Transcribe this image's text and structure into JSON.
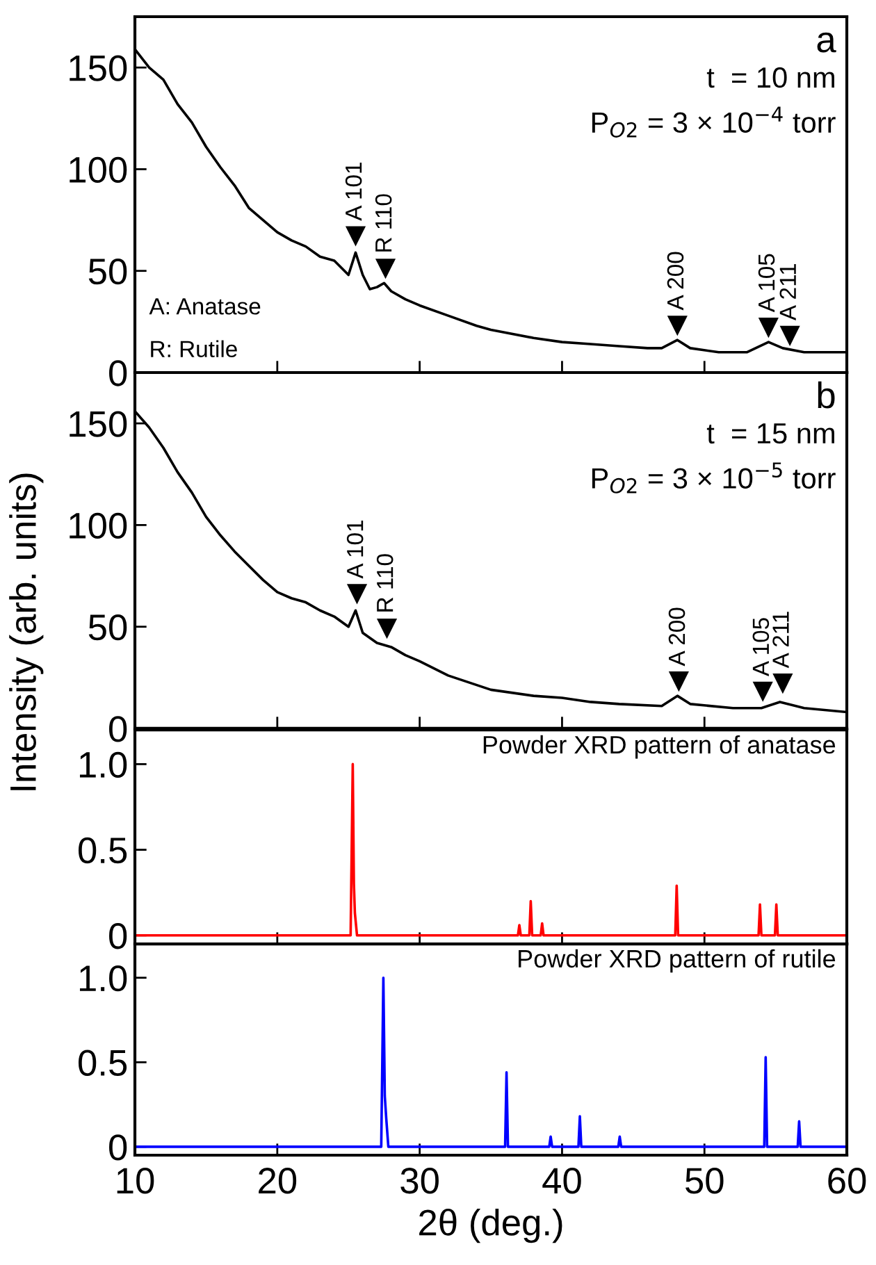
{
  "chart_data": [
    {
      "type": "line",
      "title": "a",
      "ylabel": "Intensity (arb. units)",
      "xlim": [
        10,
        60
      ],
      "xticks": [
        10,
        20,
        30,
        40,
        50,
        60
      ],
      "ylim": [
        0,
        175
      ],
      "yticks": [
        0,
        50,
        100,
        150
      ],
      "tick_labels": "y",
      "grid": false,
      "legend": false,
      "annotations": [
        "t  = 10 nm",
        "P$_{O2}$ = 3 × 10$^{−4}$ torr",
        "A: Anatase",
        "R: Rutile",
        {
          "text": "A 101",
          "x": 25.5,
          "y": 67
        },
        {
          "text": "R 110",
          "x": 27.6,
          "y": 51
        },
        {
          "text": "A 200",
          "x": 48.1,
          "y": 23
        },
        {
          "text": "A 105",
          "x": 54.5,
          "y": 22
        },
        {
          "text": "A 211",
          "x": 56.0,
          "y": 18
        }
      ],
      "series": [
        {
          "color": "#000000",
          "x": [
            10,
            11,
            12,
            13,
            14,
            15,
            16,
            17,
            18,
            19,
            20,
            21,
            22,
            23,
            24,
            25,
            25.5,
            26,
            26.5,
            27,
            27.5,
            28,
            29,
            30,
            32,
            34,
            35,
            38,
            40,
            42,
            44,
            46,
            47,
            48.1,
            49,
            51,
            53,
            54.5,
            55.5,
            57,
            60
          ],
          "values": [
            159,
            150,
            144,
            132,
            123,
            111,
            101,
            92,
            81,
            75,
            69,
            65,
            62,
            57,
            55,
            48,
            59,
            48,
            41,
            42,
            44,
            40,
            36,
            33,
            28,
            23,
            21,
            17,
            15,
            14,
            13,
            12,
            12,
            16,
            12,
            10,
            10,
            15,
            12,
            10,
            10
          ]
        },
        {
          "type": "scatter",
          "marker": "triangle",
          "color": "#000000",
          "x": [
            25.5,
            27.6,
            48.1,
            54.5,
            56.0
          ],
          "values": [
            67,
            51,
            23,
            22,
            18
          ]
        }
      ]
    },
    {
      "type": "line",
      "title": "b",
      "xlim": [
        10,
        60
      ],
      "xticks": [
        10,
        20,
        30,
        40,
        50,
        60
      ],
      "ylim": [
        0,
        175
      ],
      "yticks": [
        0,
        50,
        100,
        150
      ],
      "tick_labels": "y",
      "grid": false,
      "legend": false,
      "annotations": [
        "t  = 15 nm",
        "P$_{O2}$ = 3 × 10$^{−5}$ torr",
        {
          "text": "A 101",
          "x": 25.6,
          "y": 66
        },
        {
          "text": "R 110",
          "x": 27.7,
          "y": 49
        },
        {
          "text": "A 200",
          "x": 48.2,
          "y": 23
        },
        {
          "text": "A 105",
          "x": 54.1,
          "y": 18
        },
        {
          "text": "A 211",
          "x": 55.5,
          "y": 22
        }
      ],
      "series": [
        {
          "color": "#000000",
          "x": [
            10,
            11,
            12,
            13,
            14,
            15,
            16,
            17,
            18,
            19,
            20,
            21,
            22,
            23,
            24,
            25,
            25.5,
            26,
            27,
            28,
            29,
            30,
            32,
            35,
            38,
            40,
            42,
            44,
            47,
            48.1,
            49,
            52,
            54,
            55.3,
            57,
            60
          ],
          "values": [
            156,
            148,
            138,
            126,
            116,
            104,
            95,
            87,
            80,
            73,
            67,
            64,
            62,
            58,
            55,
            50,
            58,
            47,
            42,
            40,
            36,
            33,
            26,
            19,
            16,
            15,
            13,
            12,
            11,
            16,
            12,
            10,
            10,
            13,
            10,
            8
          ]
        },
        {
          "type": "scatter",
          "marker": "triangle",
          "color": "#000000",
          "x": [
            25.6,
            27.7,
            48.2,
            54.1,
            55.5
          ],
          "values": [
            66,
            49,
            23,
            18,
            22
          ]
        }
      ]
    },
    {
      "type": "line",
      "xlim": [
        10,
        60
      ],
      "xticks": [
        10,
        20,
        30,
        40,
        50,
        60
      ],
      "ylim": [
        -0.05,
        1.2
      ],
      "yticks": [
        0,
        0.5,
        {
          "value": 1,
          "label": "1.0"
        }
      ],
      "tick_labels": "y",
      "grid": false,
      "legend": false,
      "annotations": [
        "Powder XRD pattern of anatase"
      ],
      "series": [
        {
          "color": "#ff0000",
          "x": [
            10,
            25.15,
            25.3,
            25.38,
            25.45,
            25.6,
            36.9,
            37.0,
            37.1,
            37.7,
            37.8,
            37.9,
            38.5,
            38.6,
            38.7,
            47.95,
            48.05,
            48.15,
            53.8,
            53.9,
            54.0,
            54.95,
            55.05,
            55.15,
            60
          ],
          "values": [
            0,
            0,
            1.0,
            0.3,
            0.13,
            0,
            0,
            0.06,
            0,
            0,
            0.2,
            0,
            0,
            0.07,
            0,
            0,
            0.29,
            0,
            0,
            0.18,
            0,
            0,
            0.18,
            0,
            0
          ]
        }
      ]
    },
    {
      "type": "line",
      "xlabel": "2θ (deg.)",
      "xlim": [
        10,
        60
      ],
      "xticks": [
        10,
        20,
        30,
        40,
        50,
        60
      ],
      "ylim": [
        -0.05,
        1.2
      ],
      "yticks": [
        0,
        0.5,
        {
          "value": 1,
          "label": "1.0"
        }
      ],
      "grid": false,
      "legend": false,
      "annotations": [
        "Powder XRD pattern of rutile"
      ],
      "series": [
        {
          "color": "#0000ff",
          "x": [
            10,
            27.3,
            27.45,
            27.55,
            27.65,
            27.8,
            36.0,
            36.1,
            36.2,
            39.1,
            39.2,
            39.3,
            41.15,
            41.25,
            41.35,
            43.95,
            44.05,
            44.15,
            54.2,
            54.3,
            54.4,
            56.55,
            56.65,
            56.75,
            60
          ],
          "values": [
            0,
            0,
            1.0,
            0.3,
            0.17,
            0,
            0,
            0.44,
            0,
            0,
            0.06,
            0,
            0,
            0.18,
            0,
            0,
            0.06,
            0,
            0,
            0.53,
            0,
            0,
            0.15,
            0,
            0
          ]
        }
      ]
    }
  ]
}
